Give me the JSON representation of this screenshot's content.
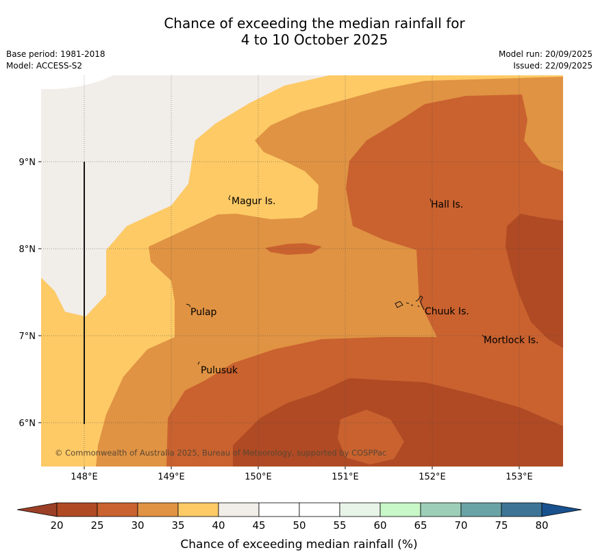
{
  "header": {
    "title_line1": "Chance of exceeding the median rainfall for",
    "title_line2": "4 to 10 October 2025",
    "base_period": "Base period: 1981-2018",
    "model": "Model: ACCESS-S2",
    "model_run": "Model run: 20/09/2025",
    "issued": "Issued: 22/09/2025"
  },
  "map": {
    "lon_labels": [
      "148°E",
      "149°E",
      "150°E",
      "151°E",
      "152°E",
      "153°E"
    ],
    "lat_labels": [
      "9°N",
      "8°N",
      "7°N",
      "6°N"
    ],
    "places": [
      {
        "name": "Magur Is."
      },
      {
        "name": "Hall Is."
      },
      {
        "name": "Pulap"
      },
      {
        "name": "Chuuk Is."
      },
      {
        "name": "Mortlock Is."
      },
      {
        "name": "Pulusuk"
      }
    ],
    "copyright": "© Commonwealth of Australia 2025, Bureau of Meteorology, supported by COSPPac"
  },
  "colorbar": {
    "ticks": [
      "20",
      "25",
      "30",
      "35",
      "40",
      "45",
      "50",
      "55",
      "60",
      "65",
      "70",
      "75",
      "80"
    ],
    "colors": [
      "#af4a24",
      "#c9622f",
      "#e09343",
      "#fdca66",
      "#f1ede8",
      "#ffffff",
      "#ffffff",
      "#e9f4e8",
      "#c8f7c8",
      "#9dcfb8",
      "#6aa3a6",
      "#3e7597"
    ],
    "under_color": "#9b4026",
    "over_color": "#18518e",
    "label": "Chance of exceeding median rainfall (%)"
  }
}
